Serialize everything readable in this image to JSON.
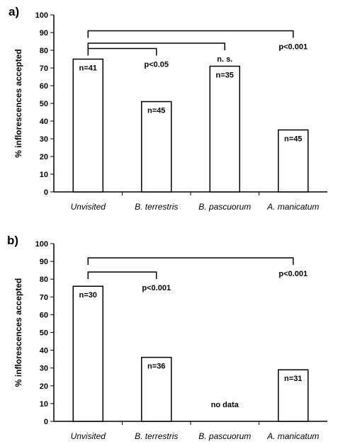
{
  "chart_data": [
    {
      "panel_label": "a)",
      "type": "bar",
      "ylabel": "% inflorescences accepted",
      "ylim": [
        0,
        100
      ],
      "yticks": [
        0,
        10,
        20,
        30,
        40,
        50,
        60,
        70,
        80,
        90,
        100
      ],
      "categories": [
        "Unvisited",
        "B. terrestris",
        "B. pascuorum",
        "A. manicatum"
      ],
      "values": [
        75,
        51,
        71,
        35
      ],
      "n_labels": [
        "n=41",
        "n=45",
        "n=35",
        "n=45"
      ],
      "comparisons": [
        {
          "from": 0,
          "to": 1,
          "level": 81,
          "label": "p<0.05"
        },
        {
          "from": 0,
          "to": 2,
          "level": 84,
          "label": "n. s."
        },
        {
          "from": 0,
          "to": 3,
          "level": 91,
          "label": "p<0.001"
        }
      ]
    },
    {
      "panel_label": "b)",
      "type": "bar",
      "ylabel": "% inflorescences accepted",
      "ylim": [
        0,
        100
      ],
      "yticks": [
        0,
        10,
        20,
        30,
        40,
        50,
        60,
        70,
        80,
        90,
        100
      ],
      "categories": [
        "Unvisited",
        "B. terrestris",
        "B. pascuorum",
        "A. manicatum"
      ],
      "values": [
        76,
        36,
        null,
        29
      ],
      "n_labels": [
        "n=30",
        "n=36",
        null,
        "n=31"
      ],
      "missing_label": "no data",
      "comparisons": [
        {
          "from": 0,
          "to": 1,
          "level": 84,
          "label": "p<0.001"
        },
        {
          "from": 0,
          "to": 3,
          "level": 92,
          "label": "p<0.001"
        }
      ]
    }
  ]
}
